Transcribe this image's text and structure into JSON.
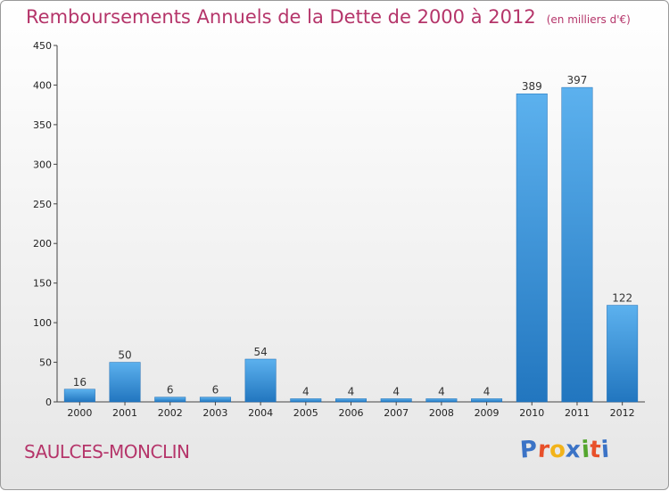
{
  "chart_data": {
    "type": "bar",
    "title": "Remboursements Annuels de la Dette de 2000 à 2012",
    "subtitle": "(en milliers d'€)",
    "categories": [
      "2000",
      "2001",
      "2002",
      "2003",
      "2004",
      "2005",
      "2006",
      "2007",
      "2008",
      "2009",
      "2010",
      "2011",
      "2012"
    ],
    "values": [
      16,
      50,
      6,
      6,
      54,
      4,
      4,
      4,
      4,
      4,
      389,
      397,
      122
    ],
    "ylim": [
      0,
      450
    ],
    "yticks": [
      0,
      50,
      100,
      150,
      200,
      250,
      300,
      350,
      400,
      450
    ],
    "grid": false,
    "legend": "none",
    "bar_color": "#3a8fd6"
  },
  "footer": {
    "commune": "SAULCES-MONCLIN",
    "logo_letters": [
      "P",
      "r",
      "o",
      "x",
      "i",
      "t",
      "i"
    ],
    "logo_colors": [
      "#3b73c6",
      "#e8502a",
      "#f2b31a",
      "#3b73c6",
      "#54a62e",
      "#e8502a",
      "#3b73c6"
    ]
  }
}
